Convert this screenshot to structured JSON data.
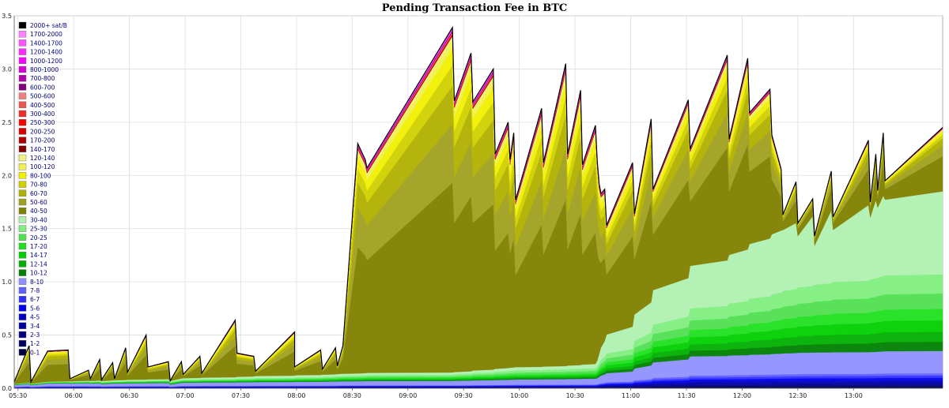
{
  "chart_data": {
    "type": "area",
    "title": "Pending Transaction Fee in BTC",
    "xlabel": "",
    "ylabel": "",
    "ylim": [
      0,
      3.5
    ],
    "yticks": [
      "0.0",
      "0.5",
      "1.0",
      "1.5",
      "2.0",
      "2.5",
      "3.0",
      "3.5"
    ],
    "xlim": [
      "05:28",
      "13:48"
    ],
    "xticks": [
      "05:30",
      "06:00",
      "06:30",
      "07:00",
      "07:30",
      "08:00",
      "08:30",
      "09:00",
      "09:30",
      "10:00",
      "10:30",
      "11:00",
      "11:30",
      "12:00",
      "12:30",
      "13:00"
    ],
    "grid": true,
    "stacked": true,
    "legend_position": "top-left",
    "legend": [
      {
        "label": "2000+ sat/B",
        "color": "#000000"
      },
      {
        "label": "1700-2000",
        "color": "#ff80ff"
      },
      {
        "label": "1400-1700",
        "color": "#ff55ff"
      },
      {
        "label": "1200-1400",
        "color": "#ff2bff"
      },
      {
        "label": "1000-1200",
        "color": "#ff00ff"
      },
      {
        "label": "800-1000",
        "color": "#d600d6"
      },
      {
        "label": "700-800",
        "color": "#b000b0"
      },
      {
        "label": "600-700",
        "color": "#800080"
      },
      {
        "label": "500-600",
        "color": "#f08080"
      },
      {
        "label": "400-500",
        "color": "#ee5555"
      },
      {
        "label": "300-400",
        "color": "#ee2a2a"
      },
      {
        "label": "250-300",
        "color": "#ff0000"
      },
      {
        "label": "200-250",
        "color": "#d40000"
      },
      {
        "label": "170-200",
        "color": "#aa0000"
      },
      {
        "label": "140-170",
        "color": "#800000"
      },
      {
        "label": "120-140",
        "color": "#f0f080"
      },
      {
        "label": "100-120",
        "color": "#f0f050"
      },
      {
        "label": "80-100",
        "color": "#f0f000"
      },
      {
        "label": "70-80",
        "color": "#d0d000"
      },
      {
        "label": "60-70",
        "color": "#b0b000"
      },
      {
        "label": "50-60",
        "color": "#a0a020"
      },
      {
        "label": "40-50",
        "color": "#808000"
      },
      {
        "label": "30-40",
        "color": "#b0f0b0"
      },
      {
        "label": "25-30",
        "color": "#80ee80"
      },
      {
        "label": "20-25",
        "color": "#50e050"
      },
      {
        "label": "17-20",
        "color": "#20e020"
      },
      {
        "label": "14-17",
        "color": "#00d000"
      },
      {
        "label": "12-14",
        "color": "#00b000"
      },
      {
        "label": "10-12",
        "color": "#008000"
      },
      {
        "label": "8-10",
        "color": "#9090ff"
      },
      {
        "label": "7-8",
        "color": "#6060ff"
      },
      {
        "label": "6-7",
        "color": "#3030ff"
      },
      {
        "label": "5-6",
        "color": "#0000f0"
      },
      {
        "label": "4-5",
        "color": "#0000c0"
      },
      {
        "label": "3-4",
        "color": "#0000a0"
      },
      {
        "label": "2-3",
        "color": "#000080"
      },
      {
        "label": "1-2",
        "color": "#000060"
      },
      {
        "label": "0-1",
        "color": "#000040"
      }
    ],
    "x": [
      "05:28",
      "05:36",
      "05:37",
      "05:46",
      "05:57",
      "05:58",
      "06:08",
      "06:09",
      "06:14",
      "06:15",
      "06:21",
      "06:22",
      "06:28",
      "06:29",
      "06:39",
      "06:40",
      "06:51",
      "06:52",
      "06:58",
      "06:59",
      "07:08",
      "07:09",
      "07:27",
      "07:28",
      "07:37",
      "07:38",
      "07:59",
      "07:59",
      "08:13",
      "08:14",
      "08:21",
      "08:22",
      "08:25",
      "08:33",
      "08:37",
      "08:38",
      "09:24",
      "09:25",
      "09:34",
      "09:35",
      "09:46",
      "09:47",
      "09:54",
      "09:55",
      "09:57",
      "09:58",
      "10:12",
      "10:13",
      "10:25",
      "10:26",
      "10:33",
      "10:34",
      "10:41",
      "10:42",
      "10:43",
      "10:44",
      "10:46",
      "10:47",
      "11:01",
      "11:02",
      "11:11",
      "11:12",
      "11:31",
      "11:32",
      "11:52",
      "11:53",
      "12:03",
      "12:04",
      "12:15",
      "12:16",
      "12:21",
      "12:22",
      "12:29",
      "12:30",
      "12:38",
      "12:39",
      "12:48",
      "12:49",
      "13:08",
      "13:09",
      "13:12",
      "13:13",
      "13:16",
      "13:17",
      "13:48"
    ],
    "series_totals": [
      0.06,
      0.4,
      0.06,
      0.35,
      0.36,
      0.09,
      0.17,
      0.09,
      0.27,
      0.08,
      0.24,
      0.09,
      0.38,
      0.15,
      0.5,
      0.2,
      0.25,
      0.07,
      0.25,
      0.13,
      0.3,
      0.14,
      0.64,
      0.33,
      0.3,
      0.16,
      0.53,
      0.2,
      0.36,
      0.18,
      0.38,
      0.21,
      0.4,
      2.3,
      2.15,
      2.07,
      3.39,
      2.7,
      3.15,
      2.69,
      3.0,
      2.2,
      2.5,
      2.15,
      2.4,
      1.77,
      2.63,
      2.12,
      3.05,
      2.2,
      2.8,
      2.1,
      2.47,
      2.13,
      1.92,
      1.83,
      1.87,
      1.53,
      2.12,
      1.64,
      2.53,
      1.87,
      2.71,
      2.25,
      3.13,
      2.34,
      3.1,
      2.59,
      2.81,
      2.38,
      2.06,
      1.63,
      1.94,
      1.55,
      1.78,
      1.43,
      2.04,
      1.61,
      2.33,
      1.75,
      2.2,
      1.86,
      2.4,
      1.95,
      2.45
    ],
    "band_stops": {
      "blue_0_10": [
        0.04,
        0.05,
        0.045,
        0.05,
        0.055,
        0.06,
        0.065,
        0.07,
        0.08,
        0.085,
        0.09,
        0.15,
        0.3,
        0.32,
        0.335,
        0.34,
        0.35
      ],
      "green_10_30": [
        0.01,
        0.015,
        0.02,
        0.025,
        0.03,
        0.04,
        0.05,
        0.06,
        0.08,
        0.09,
        0.1,
        0.2,
        0.45,
        0.55,
        0.62,
        0.68,
        0.72
      ],
      "light_green_30_40": [
        0.0,
        0.005,
        0.01,
        0.01,
        0.015,
        0.02,
        0.02,
        0.02,
        0.03,
        0.03,
        0.04,
        0.2,
        0.4,
        0.55,
        0.65,
        0.72,
        0.78
      ]
    }
  }
}
